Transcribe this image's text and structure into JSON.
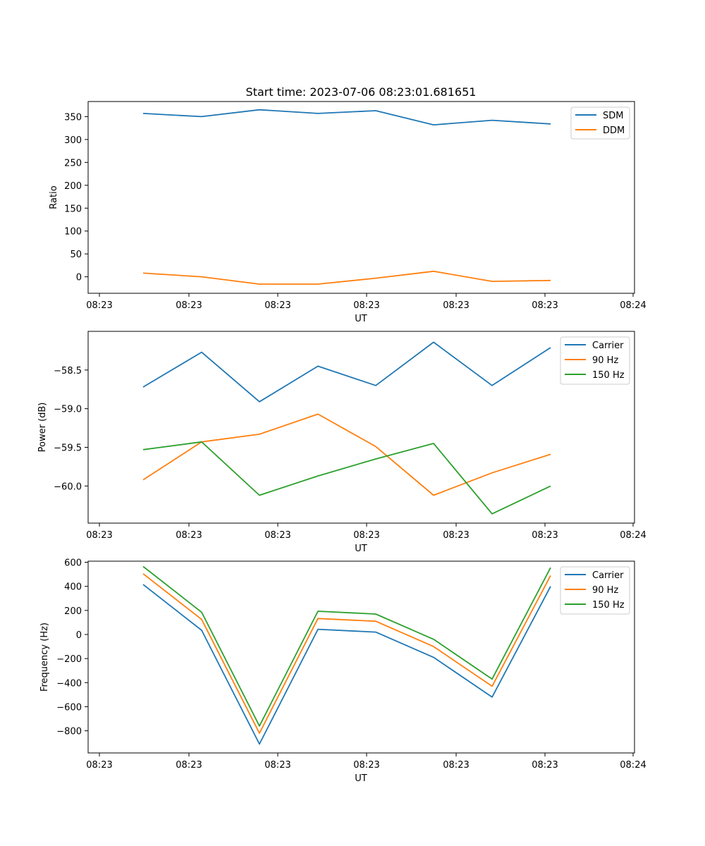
{
  "chart_data": [
    {
      "type": "line",
      "title": "Start time: 2023-07-06 08:23:01.681651",
      "xlabel": "UT",
      "ylabel": "Ratio",
      "x_ticks": [
        "08:23",
        "08:23",
        "08:23",
        "08:23",
        "08:23",
        "08:23",
        "08:24"
      ],
      "y_ticks": [
        0,
        50,
        100,
        150,
        200,
        250,
        300,
        350
      ],
      "ylim": [
        -36,
        383
      ],
      "x_points": [
        1,
        2,
        3,
        4,
        5,
        6,
        7,
        8
      ],
      "legend": "upper right",
      "series": [
        {
          "name": "SDM",
          "color": "#1f77b4",
          "values": [
            357,
            350,
            365,
            357,
            363,
            332,
            342,
            334
          ]
        },
        {
          "name": "DDM",
          "color": "#ff7f0e",
          "values": [
            8,
            0,
            -16,
            -16,
            -3,
            12,
            -10,
            -8
          ]
        }
      ]
    },
    {
      "type": "line",
      "title": "",
      "xlabel": "UT",
      "ylabel": "Power (dB)",
      "x_ticks": [
        "08:23",
        "08:23",
        "08:23",
        "08:23",
        "08:23",
        "08:23",
        "08:24"
      ],
      "y_ticks": [
        -58.5,
        -59.0,
        -59.5,
        -60.0
      ],
      "ylim": [
        -60.48,
        -58.0
      ],
      "x_points": [
        1,
        2,
        3,
        4,
        5,
        6,
        7,
        8
      ],
      "legend": "upper right",
      "series": [
        {
          "name": "Carrier",
          "color": "#1f77b4",
          "values": [
            -58.72,
            -58.27,
            -58.91,
            -58.45,
            -58.7,
            -58.14,
            -58.7,
            -58.21
          ]
        },
        {
          "name": "90 Hz",
          "color": "#ff7f0e",
          "values": [
            -59.92,
            -59.43,
            -59.33,
            -59.07,
            -59.49,
            -60.12,
            -59.83,
            -59.59
          ]
        },
        {
          "name": "150 Hz",
          "color": "#2ca02c",
          "values": [
            -59.53,
            -59.43,
            -60.12,
            -59.87,
            -59.65,
            -59.45,
            -60.36,
            -60.0
          ]
        }
      ]
    },
    {
      "type": "line",
      "title": "",
      "xlabel": "UT",
      "ylabel": "Frequency (Hz)",
      "x_ticks": [
        "08:23",
        "08:23",
        "08:23",
        "08:23",
        "08:23",
        "08:23",
        "08:24"
      ],
      "y_ticks": [
        600,
        400,
        200,
        0,
        -200,
        -400,
        -600,
        -800
      ],
      "ylim": [
        -984,
        609
      ],
      "x_points": [
        1,
        2,
        3,
        4,
        5,
        6,
        7,
        8
      ],
      "legend": "upper right",
      "series": [
        {
          "name": "Carrier",
          "color": "#1f77b4",
          "values": [
            415,
            35,
            -910,
            43,
            20,
            -190,
            -520,
            400
          ]
        },
        {
          "name": "90 Hz",
          "color": "#ff7f0e",
          "values": [
            505,
            125,
            -820,
            133,
            110,
            -100,
            -430,
            490
          ]
        },
        {
          "name": "150 Hz",
          "color": "#2ca02c",
          "values": [
            565,
            185,
            -760,
            193,
            170,
            -40,
            -370,
            555
          ]
        }
      ]
    }
  ]
}
